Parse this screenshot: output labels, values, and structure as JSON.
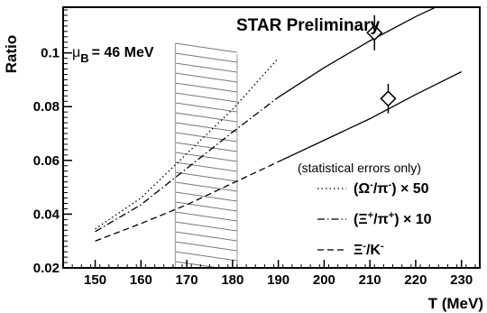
{
  "chart_data": {
    "type": "line",
    "title": "STAR Preliminary",
    "mu_b_label": "μ",
    "mu_b_sub": "B",
    "mu_b_value": "= 46 MeV",
    "xlabel": "T (MeV)",
    "ylabel": "Ratio",
    "xlim": [
      143,
      234
    ],
    "ylim": [
      0.02,
      0.117
    ],
    "x_ticks": [
      150,
      160,
      170,
      180,
      190,
      200,
      210,
      220,
      230
    ],
    "y_ticks": [
      {
        "value": 0.02,
        "label": "0.02"
      },
      {
        "value": 0.04,
        "label": "0.04"
      },
      {
        "value": 0.06,
        "label": "0.06"
      },
      {
        "value": 0.08,
        "label": "0.08"
      },
      {
        "value": 0.1,
        "label": "0.1"
      }
    ],
    "note": "(statistical errors only)",
    "hatched_band": {
      "x": [
        167.5,
        181
      ]
    },
    "series": [
      {
        "name_main": "(Ω",
        "name_sup1": "-",
        "name_mid": "/π",
        "name_sup2": "-",
        "name_end": ")",
        "scale": "× 50",
        "style": "dotted",
        "x": [
          150,
          160,
          170,
          180,
          190
        ],
        "y": [
          0.0345,
          0.046,
          0.0625,
          0.079,
          0.098
        ]
      },
      {
        "name_main": "(Ξ",
        "name_sup1": "+",
        "name_mid": "/π",
        "name_sup2": "+",
        "name_end": ")",
        "scale": "× 10",
        "style": "dashdot",
        "x": [
          150,
          160,
          170,
          180,
          190,
          200,
          210,
          220,
          230
        ],
        "y": [
          0.0335,
          0.0435,
          0.057,
          0.0705,
          0.0835,
          0.0945,
          0.1045,
          0.1135,
          0.1215
        ],
        "measured": {
          "x": 211,
          "y": 0.1075,
          "err": 0.0065
        }
      },
      {
        "name_main": "Ξ",
        "name_sup1": "-",
        "name_mid": "/K",
        "name_sup2": "-",
        "name_end": "",
        "scale": "",
        "style": "dashed",
        "x": [
          150,
          160,
          170,
          180,
          190,
          200,
          210,
          220,
          230
        ],
        "y": [
          0.03,
          0.0365,
          0.0435,
          0.0515,
          0.0595,
          0.0675,
          0.0755,
          0.0845,
          0.093
        ],
        "measured": {
          "x": 214,
          "y": 0.083,
          "err": 0.0055
        }
      }
    ]
  }
}
